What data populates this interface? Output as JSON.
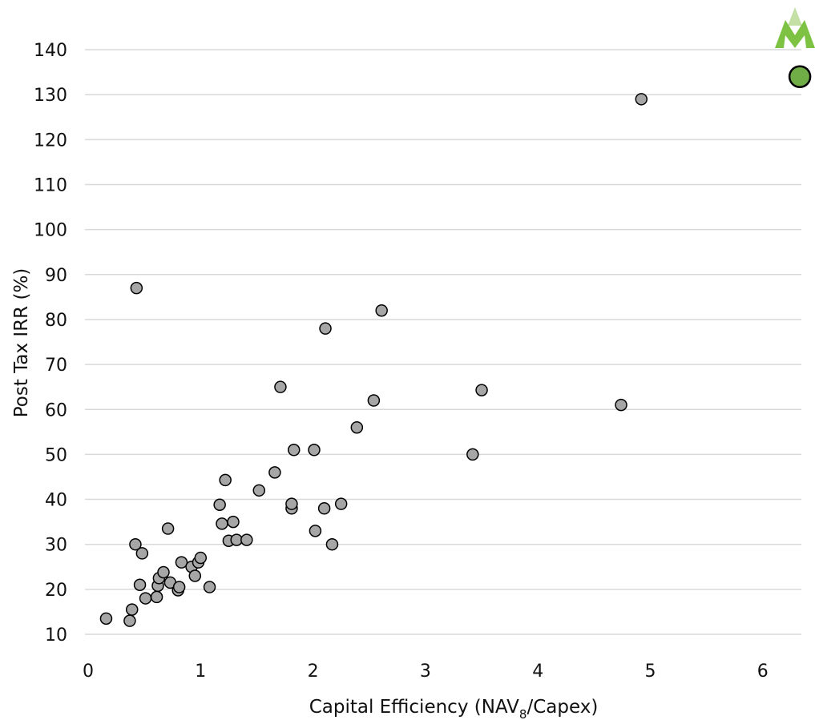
{
  "chart_data": {
    "type": "scatter",
    "title": "",
    "xlabel": {
      "main": "Capital Efficiency (NAV",
      "subscript": "8",
      "suffix": "/Capex)"
    },
    "ylabel": "Post Tax IRR (%)",
    "xlim": [
      0,
      6.6
    ],
    "ylim": [
      6,
      144
    ],
    "x_ticks": [
      0,
      1,
      2,
      3,
      4,
      5,
      6
    ],
    "y_ticks": [
      10,
      20,
      30,
      40,
      50,
      60,
      70,
      80,
      90,
      100,
      110,
      120,
      130,
      140
    ],
    "grid": "horizontal",
    "legend": "none",
    "series": [
      {
        "name": "",
        "color": "#a6a6a6",
        "points": [
          [
            0.16,
            13.5
          ],
          [
            0.37,
            13.0
          ],
          [
            0.39,
            15.5
          ],
          [
            0.42,
            30.0
          ],
          [
            0.43,
            87.0
          ],
          [
            0.46,
            21.0
          ],
          [
            0.48,
            28.0
          ],
          [
            0.51,
            18.0
          ],
          [
            0.61,
            18.3
          ],
          [
            0.62,
            20.8
          ],
          [
            0.63,
            22.5
          ],
          [
            0.67,
            23.8
          ],
          [
            0.71,
            33.5
          ],
          [
            0.73,
            21.5
          ],
          [
            0.8,
            19.8
          ],
          [
            0.81,
            20.5
          ],
          [
            0.83,
            26.0
          ],
          [
            0.92,
            25.0
          ],
          [
            0.95,
            23.0
          ],
          [
            0.98,
            26.0
          ],
          [
            1.0,
            27.0
          ],
          [
            1.08,
            20.5
          ],
          [
            1.17,
            38.8
          ],
          [
            1.19,
            34.6
          ],
          [
            1.22,
            44.3
          ],
          [
            1.25,
            30.8
          ],
          [
            1.29,
            35.0
          ],
          [
            1.32,
            31.0
          ],
          [
            1.41,
            31.0
          ],
          [
            1.52,
            42.0
          ],
          [
            1.66,
            46.0
          ],
          [
            1.71,
            65.0
          ],
          [
            1.81,
            38.0
          ],
          [
            1.81,
            39.0
          ],
          [
            1.83,
            51.0
          ],
          [
            2.01,
            51.0
          ],
          [
            2.02,
            33.0
          ],
          [
            2.1,
            38.0
          ],
          [
            2.11,
            78.0
          ],
          [
            2.17,
            30.0
          ],
          [
            2.25,
            39.0
          ],
          [
            2.39,
            56.0
          ],
          [
            2.54,
            62.0
          ],
          [
            2.61,
            82.0
          ],
          [
            3.42,
            50.0
          ],
          [
            3.5,
            64.3
          ],
          [
            4.74,
            61.0
          ],
          [
            4.92,
            129.0
          ]
        ]
      },
      {
        "name": "",
        "color": "#70ad47",
        "points": [
          [
            6.33,
            134.0
          ]
        ]
      }
    ]
  },
  "logo": {
    "name": "m-logo",
    "color_dark": "#7dc242",
    "color_light": "#c5e0a5"
  }
}
